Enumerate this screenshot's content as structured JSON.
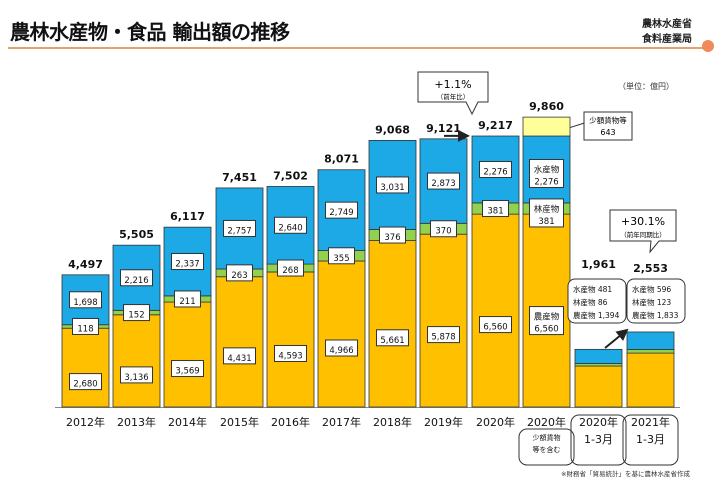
{
  "header": {
    "title": "農林水産物・食品 輸出額の推移",
    "org_line1": "農林水産省",
    "org_line2": "食料産業局"
  },
  "unit_label": "（単位：億円）",
  "source_note": "※財務省「貿易統計」を基に農林水産省作成",
  "colors": {
    "agri": "#FFC000",
    "forest": "#92D050",
    "fish": "#1CA9E6",
    "small": "#FFFF99"
  },
  "callouts": {
    "yoy": {
      "value": "+1.1%",
      "sub": "（前年比）"
    },
    "q1": {
      "value": "+30.1%",
      "sub": "（前年同期比）"
    },
    "small_goods": {
      "label": "少額貨物等",
      "value": "643"
    },
    "fish_2020": {
      "label": "水産物",
      "value": "2,276"
    },
    "forest_2020": {
      "label": "林産物",
      "value": "381"
    },
    "agri_2020": {
      "label": "農産物",
      "value": "6,560"
    },
    "q1_2020_lines": [
      "水産物  481",
      "林産物   86",
      "農産物  1,394"
    ],
    "q1_2021_lines": [
      "水産物  596",
      "林産物   123",
      "農産物  1,833"
    ]
  },
  "chart_data": {
    "type": "bar",
    "stacked": true,
    "unit": "億円",
    "categories": [
      "2012年",
      "2013年",
      "2014年",
      "2015年",
      "2016年",
      "2017年",
      "2018年",
      "2019年",
      "2020年",
      "2020年",
      "2020年",
      "2021年"
    ],
    "category_sublabels": [
      "",
      "",
      "",
      "",
      "",
      "",
      "",
      "",
      "",
      "少額貨物等を含む",
      "1-3月",
      "1-3月"
    ],
    "series": [
      {
        "key": "agri",
        "values": [
          2680,
          3136,
          3569,
          4431,
          4593,
          4966,
          5661,
          5878,
          6560,
          6560,
          1394,
          1833
        ]
      },
      {
        "key": "forest",
        "values": [
          118,
          152,
          211,
          263,
          268,
          355,
          376,
          370,
          381,
          381,
          86,
          123
        ]
      },
      {
        "key": "fish",
        "values": [
          1698,
          2216,
          2337,
          2757,
          2640,
          2749,
          3031,
          2873,
          2276,
          2276,
          481,
          596
        ]
      },
      {
        "key": "small",
        "values": [
          0,
          0,
          0,
          0,
          0,
          0,
          0,
          0,
          0,
          643,
          0,
          0
        ]
      }
    ],
    "totals": [
      "4,497",
      "5,505",
      "6,117",
      "7,451",
      "7,502",
      "8,071",
      "9,068",
      "9,121",
      "9,217",
      "9,860",
      "1,961",
      "2,553"
    ],
    "value_labels": {
      "agri": [
        "2,680",
        "3,136",
        "3,569",
        "4,431",
        "4,593",
        "4,966",
        "5,661",
        "5,878",
        "6,560"
      ],
      "forest": [
        "118",
        "152",
        "211",
        "263",
        "268",
        "355",
        "376",
        "370",
        "381"
      ],
      "fish": [
        "1,698",
        "2,216",
        "2,337",
        "2,757",
        "2,640",
        "2,749",
        "3,031",
        "2,873",
        "2,276"
      ]
    },
    "grid": false,
    "legend": "none"
  }
}
